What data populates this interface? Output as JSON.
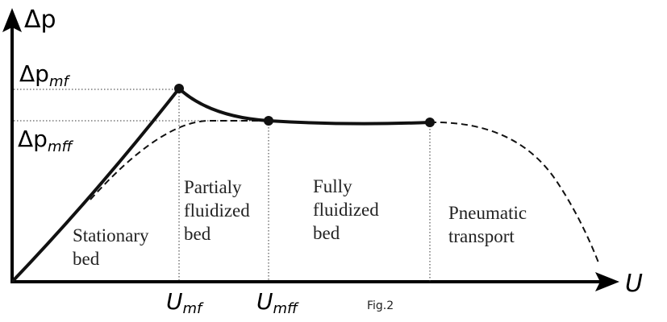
{
  "axes": {
    "y_label": "Δp",
    "x_label": "U"
  },
  "y_marks": [
    {
      "main": "Δp",
      "sub": "mf"
    },
    {
      "main": "Δp",
      "sub": "mff"
    }
  ],
  "x_marks": [
    {
      "main": "U",
      "sub": "mf"
    },
    {
      "main": "U",
      "sub": "mff"
    }
  ],
  "regions": [
    {
      "lines": [
        "Stationary",
        "bed"
      ]
    },
    {
      "lines": [
        "Partialy",
        "fluidized",
        "bed"
      ]
    },
    {
      "lines": [
        "Fully",
        "fluidized",
        "bed"
      ]
    },
    {
      "lines": [
        "Pneumatic",
        "transport"
      ]
    }
  ],
  "caption": "Fig.2"
}
